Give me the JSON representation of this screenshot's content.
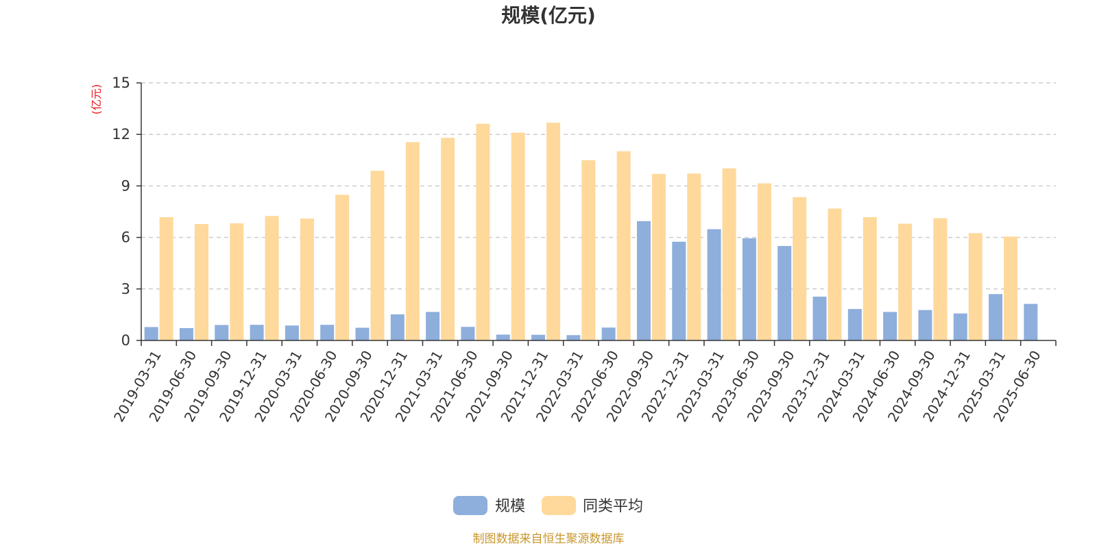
{
  "chart_data": {
    "type": "bar",
    "title": "规模(亿元)",
    "unit_label": "(亿元)",
    "categories": [
      "2019-03-31",
      "2019-06-30",
      "2019-09-30",
      "2019-12-31",
      "2020-03-31",
      "2020-06-30",
      "2020-09-30",
      "2020-12-31",
      "2021-03-31",
      "2021-06-30",
      "2021-09-30",
      "2021-12-31",
      "2022-03-31",
      "2022-06-30",
      "2022-09-30",
      "2022-12-31",
      "2023-03-31",
      "2023-06-30",
      "2023-09-30",
      "2023-12-31",
      "2024-03-31",
      "2024-06-30",
      "2024-09-30",
      "2024-12-31",
      "2025-03-31",
      "2025-06-30"
    ],
    "series": [
      {
        "name": "规模",
        "color": "#8eaedc",
        "values": [
          0.78,
          0.72,
          0.9,
          0.91,
          0.87,
          0.91,
          0.74,
          1.52,
          1.66,
          0.79,
          0.34,
          0.33,
          0.31,
          0.75,
          6.95,
          5.75,
          6.48,
          5.95,
          5.5,
          2.55,
          1.83,
          1.66,
          1.77,
          1.57,
          2.7,
          2.13
        ]
      },
      {
        "name": "同类平均",
        "color": "#fed99b",
        "values": [
          7.18,
          6.78,
          6.82,
          7.25,
          7.1,
          8.48,
          9.88,
          11.55,
          11.8,
          12.62,
          12.1,
          12.68,
          10.5,
          11.02,
          9.7,
          9.72,
          10.02,
          9.15,
          8.35,
          7.68,
          7.18,
          6.8,
          7.12,
          6.25,
          6.05,
          null
        ]
      }
    ],
    "ylim": [
      0,
      15
    ],
    "yticks": [
      0,
      3,
      6,
      9,
      12,
      15
    ],
    "grid": true,
    "legend_position": "bottom-center",
    "unit_label_color": "#e8141b",
    "source_note": "制图数据来自恒生聚源数据库",
    "source_note_color": "#c8962c"
  }
}
